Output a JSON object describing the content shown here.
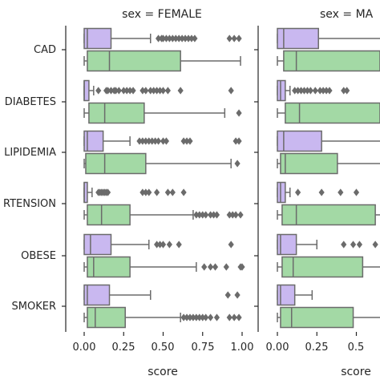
{
  "chart_data": {
    "type": "box",
    "panels": [
      {
        "title": "sex = FEMALE",
        "xlabel": "score"
      },
      {
        "title": "sex = MA",
        "xlabel": "score"
      }
    ],
    "categories": [
      "CAD",
      "DIABETES",
      "LIPIDEMIA",
      "RTENSION",
      "OBESE",
      "SMOKER"
    ],
    "xlim": [
      -0.05,
      1.05
    ],
    "xticks": [
      "0.00",
      "0.25",
      "0.50",
      "0.75",
      "1.00"
    ],
    "xticks_right": [
      "0.00",
      "0.25",
      "0.5"
    ],
    "colors": {
      "purple": "#c9b8f0",
      "green": "#a3d9a5",
      "line": "#6b6b6b",
      "outlier": "#6b6b6b"
    },
    "boxes": [
      {
        "panel": 0,
        "cat": 0,
        "hue": 0,
        "stats": [
          0.0,
          0.0,
          0.02,
          0.17,
          0.42
        ],
        "out": [
          0.47,
          0.49,
          0.5,
          0.52,
          0.54,
          0.56,
          0.58,
          0.6,
          0.62,
          0.64,
          0.66,
          0.68,
          0.7,
          0.92,
          0.95,
          0.98
        ]
      },
      {
        "panel": 0,
        "cat": 0,
        "hue": 1,
        "stats": [
          0.0,
          0.02,
          0.16,
          0.61,
          0.99
        ],
        "out": []
      },
      {
        "panel": 0,
        "cat": 1,
        "hue": 0,
        "stats": [
          0.0,
          0.0,
          0.0,
          0.03,
          0.06
        ],
        "out": [
          0.09,
          0.14,
          0.15,
          0.17,
          0.19,
          0.2,
          0.22,
          0.25,
          0.27,
          0.29,
          0.31,
          0.37,
          0.39,
          0.42,
          0.44,
          0.46,
          0.48,
          0.5,
          0.53,
          0.61,
          0.93
        ]
      },
      {
        "panel": 0,
        "cat": 1,
        "hue": 1,
        "stats": [
          0.0,
          0.03,
          0.13,
          0.38,
          0.89
        ],
        "out": [
          0.98
        ]
      },
      {
        "panel": 0,
        "cat": 2,
        "hue": 0,
        "stats": [
          0.0,
          0.0,
          0.02,
          0.12,
          0.29
        ],
        "out": [
          0.35,
          0.37,
          0.39,
          0.41,
          0.43,
          0.45,
          0.47,
          0.5,
          0.52,
          0.63,
          0.65,
          0.67,
          0.96,
          0.98
        ]
      },
      {
        "panel": 0,
        "cat": 2,
        "hue": 1,
        "stats": [
          0.0,
          0.01,
          0.13,
          0.39,
          0.93
        ],
        "out": [
          0.97
        ]
      },
      {
        "panel": 0,
        "cat": 3,
        "hue": 0,
        "stats": [
          0.0,
          0.0,
          0.0,
          0.02,
          0.05
        ],
        "out": [
          0.09,
          0.1,
          0.11,
          0.12,
          0.13,
          0.14,
          0.15,
          0.37,
          0.39,
          0.41,
          0.46,
          0.53,
          0.56,
          0.63
        ]
      },
      {
        "panel": 0,
        "cat": 3,
        "hue": 1,
        "stats": [
          0.0,
          0.02,
          0.11,
          0.29,
          0.69
        ],
        "out": [
          0.71,
          0.73,
          0.75,
          0.77,
          0.8,
          0.82,
          0.84,
          0.92,
          0.94,
          0.96,
          0.99
        ]
      },
      {
        "panel": 0,
        "cat": 4,
        "hue": 0,
        "stats": [
          0.0,
          0.0,
          0.04,
          0.17,
          0.41
        ],
        "out": [
          0.46,
          0.48,
          0.5,
          0.54,
          0.6,
          0.93
        ]
      },
      {
        "panel": 0,
        "cat": 4,
        "hue": 1,
        "stats": [
          0.0,
          0.02,
          0.06,
          0.29,
          0.71
        ],
        "out": [
          0.76,
          0.8,
          0.83,
          0.9,
          0.99,
          1.0
        ]
      },
      {
        "panel": 0,
        "cat": 5,
        "hue": 0,
        "stats": [
          0.0,
          0.0,
          0.02,
          0.16,
          0.42
        ],
        "out": [
          0.91,
          0.97
        ]
      },
      {
        "panel": 0,
        "cat": 5,
        "hue": 1,
        "stats": [
          0.0,
          0.02,
          0.07,
          0.26,
          0.61
        ],
        "out": [
          0.63,
          0.65,
          0.67,
          0.69,
          0.71,
          0.73,
          0.75,
          0.77,
          0.8,
          0.84,
          0.92,
          0.95,
          0.98
        ]
      },
      {
        "panel": 1,
        "cat": 0,
        "hue": 0,
        "stats": [
          0.0,
          0.0,
          0.04,
          0.26,
          0.7
        ],
        "out": []
      },
      {
        "panel": 1,
        "cat": 0,
        "hue": 1,
        "stats": [
          0.0,
          0.04,
          0.12,
          0.7,
          1.0
        ],
        "out": []
      },
      {
        "panel": 1,
        "cat": 1,
        "hue": 0,
        "stats": [
          0.0,
          0.0,
          0.02,
          0.05,
          0.08
        ],
        "out": [
          0.11,
          0.13,
          0.15,
          0.17,
          0.19,
          0.21,
          0.24,
          0.27,
          0.29,
          0.31,
          0.33,
          0.42,
          0.44
        ]
      },
      {
        "panel": 1,
        "cat": 1,
        "hue": 1,
        "stats": [
          0.0,
          0.05,
          0.14,
          0.7,
          1.0
        ],
        "out": []
      },
      {
        "panel": 1,
        "cat": 2,
        "hue": 0,
        "stats": [
          0.0,
          0.0,
          0.04,
          0.28,
          0.7
        ],
        "out": []
      },
      {
        "panel": 1,
        "cat": 2,
        "hue": 1,
        "stats": [
          0.0,
          0.02,
          0.05,
          0.38,
          0.8
        ],
        "out": []
      },
      {
        "panel": 1,
        "cat": 3,
        "hue": 0,
        "stats": [
          0.0,
          0.0,
          0.02,
          0.05,
          0.08
        ],
        "out": [
          0.13,
          0.28,
          0.4,
          0.5
        ]
      },
      {
        "panel": 1,
        "cat": 3,
        "hue": 1,
        "stats": [
          0.0,
          0.03,
          0.12,
          0.62,
          1.0
        ],
        "out": []
      },
      {
        "panel": 1,
        "cat": 4,
        "hue": 0,
        "stats": [
          0.0,
          0.0,
          0.02,
          0.12,
          0.25
        ],
        "out": [
          0.42,
          0.48,
          0.52,
          0.62
        ]
      },
      {
        "panel": 1,
        "cat": 4,
        "hue": 1,
        "stats": [
          0.0,
          0.03,
          0.1,
          0.54,
          1.0
        ],
        "out": []
      },
      {
        "panel": 1,
        "cat": 5,
        "hue": 0,
        "stats": [
          0.0,
          0.0,
          0.02,
          0.11,
          0.22
        ],
        "out": []
      },
      {
        "panel": 1,
        "cat": 5,
        "hue": 1,
        "stats": [
          0.0,
          0.02,
          0.09,
          0.48,
          0.9
        ],
        "out": []
      }
    ]
  }
}
